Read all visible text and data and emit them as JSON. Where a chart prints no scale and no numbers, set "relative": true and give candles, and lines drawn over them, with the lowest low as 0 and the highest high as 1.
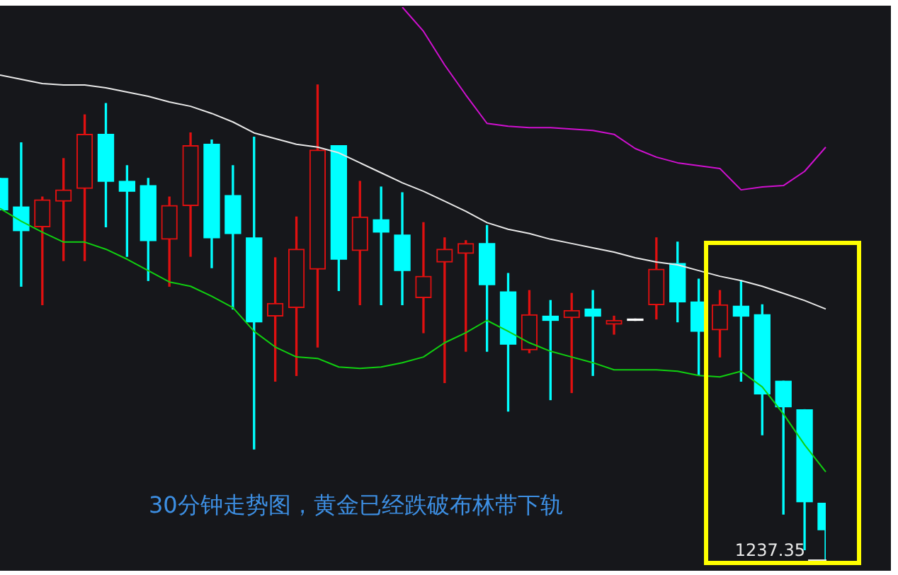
{
  "chart_data": {
    "type": "candlestick",
    "relative": true,
    "categories": [
      null,
      null,
      null,
      null,
      null,
      null,
      null,
      null,
      null,
      null,
      null,
      null,
      null,
      null,
      null,
      null,
      null,
      null,
      null,
      null,
      null,
      null,
      null,
      null,
      null,
      null,
      null,
      null,
      null,
      null,
      null,
      null,
      null,
      null,
      null,
      null,
      null,
      null,
      null,
      null
    ],
    "ohlc": [
      [
        0.803,
        0.803,
        0.737,
        0.737
      ],
      [
        0.743,
        0.878,
        0.576,
        0.693
      ],
      [
        0.701,
        0.764,
        0.537,
        0.758
      ],
      [
        0.755,
        0.845,
        0.63,
        0.779
      ],
      [
        0.782,
        0.937,
        0.63,
        0.896
      ],
      [
        0.896,
        0.961,
        0.701,
        0.797
      ],
      [
        0.797,
        0.83,
        0.639,
        0.776
      ],
      [
        0.788,
        0.803,
        0.588,
        0.672
      ],
      [
        0.675,
        0.764,
        0.576,
        0.746
      ],
      [
        0.746,
        0.899,
        0.639,
        0.872
      ],
      [
        0.875,
        0.884,
        0.615,
        0.678
      ],
      [
        0.767,
        0.83,
        0.528,
        0.687
      ],
      [
        0.678,
        0.89,
        0.233,
        0.501
      ],
      [
        0.513,
        0.636,
        0.376,
        0.54
      ],
      [
        0.531,
        0.722,
        0.388,
        0.654
      ],
      [
        0.612,
        1,
        0.448,
        0.863
      ],
      [
        0.872,
        0.872,
        0.567,
        0.633
      ],
      [
        0.651,
        0.797,
        0.537,
        0.722
      ],
      [
        0.716,
        0.785,
        0.537,
        0.69
      ],
      [
        0.684,
        0.773,
        0.537,
        0.609
      ],
      [
        0.552,
        0.71,
        0.478,
        0.597
      ],
      [
        0.627,
        0.678,
        0.373,
        0.654
      ],
      [
        0.645,
        0.672,
        0.439,
        0.666
      ],
      [
        0.666,
        0.704,
        0.439,
        0.579
      ],
      [
        0.564,
        0.603,
        0.313,
        0.454
      ],
      [
        0.442,
        0.567,
        0.436,
        0.516
      ],
      [
        0.513,
        0.546,
        0.337,
        0.504
      ],
      [
        0.51,
        0.561,
        0.352,
        0.525
      ],
      [
        0.528,
        0.567,
        0.388,
        0.513
      ],
      [
        0.496,
        0.513,
        0.475,
        0.504
      ],
      [
        0.504,
        0.504,
        0.504,
        0.504
      ],
      [
        0.537,
        0.678,
        0.507,
        0.612
      ],
      [
        0.624,
        0.669,
        0.501,
        0.543
      ],
      [
        0.543,
        0.591,
        0.388,
        0.481
      ],
      [
        0.484,
        0.567,
        0.427,
        0.537
      ],
      [
        0.534,
        0.588,
        0.376,
        0.513
      ],
      [
        0.516,
        0.537,
        0.263,
        0.349
      ],
      [
        0.376,
        0.376,
        0.096,
        0.322
      ],
      [
        0.316,
        0.316,
        0.021,
        0.122
      ],
      [
        0.119,
        0.119,
        0,
        0.063
      ]
    ],
    "colors": [
      "#00ffff",
      "#00ffff",
      "#e01010",
      "#e01010",
      "#e01010",
      "#00ffff",
      "#00ffff",
      "#00ffff",
      "#e01010",
      "#e01010",
      "#00ffff",
      "#00ffff",
      "#00ffff",
      "#e01010",
      "#e01010",
      "#e01010",
      "#00ffff",
      "#e01010",
      "#00ffff",
      "#00ffff",
      "#e01010",
      "#e01010",
      "#e01010",
      "#00ffff",
      "#00ffff",
      "#e01010",
      "#00ffff",
      "#e01010",
      "#00ffff",
      "#e01010",
      "#ffffff",
      "#e01010",
      "#00ffff",
      "#00ffff",
      "#e01010",
      "#00ffff",
      "#00ffff",
      "#00ffff",
      "#00ffff",
      "#00ffff"
    ],
    "series": [
      {
        "type": "line",
        "color": "#e8e8e8",
        "values": [
          1.021,
          1.012,
          1.003,
          1.0,
          1.0,
          0.994,
          0.985,
          0.976,
          0.964,
          0.955,
          0.94,
          0.922,
          0.899,
          0.887,
          0.875,
          0.869,
          0.857,
          0.836,
          0.815,
          0.794,
          0.776,
          0.755,
          0.734,
          0.71,
          0.696,
          0.687,
          0.675,
          0.666,
          0.657,
          0.648,
          0.636,
          0.627,
          0.621,
          0.609,
          0.597,
          0.588,
          0.576,
          0.561,
          0.546,
          0.528
        ]
      },
      {
        "type": "line",
        "color": "#10d010",
        "values": [
          0.74,
          0.713,
          0.69,
          0.669,
          0.669,
          0.654,
          0.633,
          0.609,
          0.585,
          0.576,
          0.555,
          0.531,
          0.481,
          0.448,
          0.427,
          0.424,
          0.406,
          0.403,
          0.406,
          0.415,
          0.427,
          0.457,
          0.478,
          0.504,
          0.481,
          0.457,
          0.439,
          0.427,
          0.415,
          0.4,
          0.4,
          0.4,
          0.397,
          0.388,
          0.385,
          0.397,
          0.364,
          0.307,
          0.242,
          0.185
        ]
      },
      {
        "type": "line",
        "color": "#d010d0",
        "values": [
          null,
          null,
          null,
          null,
          null,
          null,
          null,
          null,
          null,
          null,
          null,
          null,
          null,
          null,
          null,
          null,
          null,
          null,
          null,
          1.164,
          1.113,
          1.042,
          0.979,
          0.919,
          0.913,
          0.91,
          0.91,
          0.907,
          0.904,
          0.896,
          0.866,
          0.848,
          0.836,
          0.83,
          0.824,
          0.779,
          0.785,
          0.788,
          0.818,
          0.869
        ]
      }
    ],
    "marker": "none",
    "annotations": [
      "30分钟走势图，黄金已经跌破布林带下轨",
      "1237.35"
    ]
  }
}
